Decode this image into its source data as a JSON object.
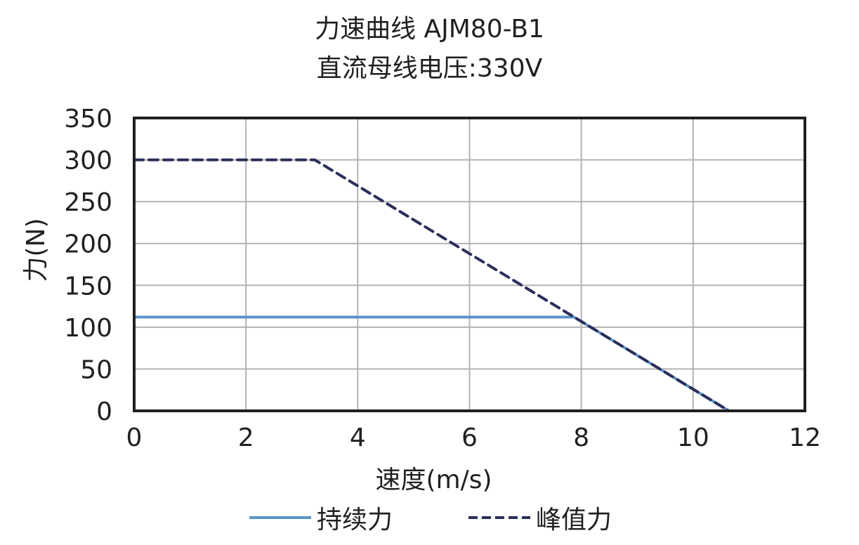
{
  "title": {
    "line1": "力速曲线 AJM80-B1",
    "line2": "直流母线电压:330V"
  },
  "axes": {
    "xlabel": "速度(m/s)",
    "ylabel": "力(N)",
    "x_ticks": [
      "0",
      "2",
      "4",
      "6",
      "8",
      "10",
      "12"
    ],
    "y_ticks": [
      "0",
      "50",
      "100",
      "150",
      "200",
      "250",
      "300",
      "350"
    ]
  },
  "legend": {
    "continuous": "持续力",
    "peak": "峰值力"
  },
  "colors": {
    "continuous": "#5b94c7",
    "peak": "#2a2f5a",
    "grid": "#b3b3b3",
    "frame": "#231f20"
  },
  "chart_data": {
    "type": "line",
    "title": "力速曲线 AJM80-B1 / 直流母线电压:330V",
    "xlabel": "速度(m/s)",
    "ylabel": "力(N)",
    "xlim": [
      0,
      12
    ],
    "ylim": [
      0,
      350
    ],
    "grid": true,
    "legend_position": "bottom",
    "series": [
      {
        "name": "持续力",
        "style": "solid",
        "color": "#5b94c7",
        "points": [
          [
            0,
            112
          ],
          [
            7.87,
            112
          ],
          [
            10.64,
            0
          ]
        ]
      },
      {
        "name": "峰值力",
        "style": "dashed",
        "color": "#2a2f5a",
        "points": [
          [
            0,
            300
          ],
          [
            3.23,
            300
          ],
          [
            10.64,
            0
          ]
        ]
      }
    ]
  }
}
